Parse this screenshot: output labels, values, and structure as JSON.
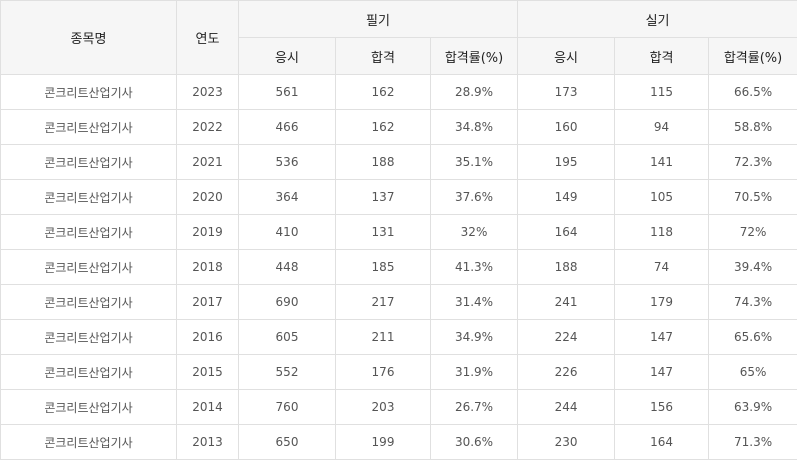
{
  "headers": {
    "name": "종목명",
    "year": "연도",
    "written": "필기",
    "practical": "실기",
    "applicants": "응시",
    "passed": "합격",
    "rate": "합격률(%)"
  },
  "rows": [
    {
      "name": "콘크리트산업기사",
      "year": "2023",
      "w_app": "561",
      "w_pass": "162",
      "w_rate": "28.9%",
      "p_app": "173",
      "p_pass": "115",
      "p_rate": "66.5%"
    },
    {
      "name": "콘크리트산업기사",
      "year": "2022",
      "w_app": "466",
      "w_pass": "162",
      "w_rate": "34.8%",
      "p_app": "160",
      "p_pass": "94",
      "p_rate": "58.8%"
    },
    {
      "name": "콘크리트산업기사",
      "year": "2021",
      "w_app": "536",
      "w_pass": "188",
      "w_rate": "35.1%",
      "p_app": "195",
      "p_pass": "141",
      "p_rate": "72.3%"
    },
    {
      "name": "콘크리트산업기사",
      "year": "2020",
      "w_app": "364",
      "w_pass": "137",
      "w_rate": "37.6%",
      "p_app": "149",
      "p_pass": "105",
      "p_rate": "70.5%"
    },
    {
      "name": "콘크리트산업기사",
      "year": "2019",
      "w_app": "410",
      "w_pass": "131",
      "w_rate": "32%",
      "p_app": "164",
      "p_pass": "118",
      "p_rate": "72%"
    },
    {
      "name": "콘크리트산업기사",
      "year": "2018",
      "w_app": "448",
      "w_pass": "185",
      "w_rate": "41.3%",
      "p_app": "188",
      "p_pass": "74",
      "p_rate": "39.4%"
    },
    {
      "name": "콘크리트산업기사",
      "year": "2017",
      "w_app": "690",
      "w_pass": "217",
      "w_rate": "31.4%",
      "p_app": "241",
      "p_pass": "179",
      "p_rate": "74.3%"
    },
    {
      "name": "콘크리트산업기사",
      "year": "2016",
      "w_app": "605",
      "w_pass": "211",
      "w_rate": "34.9%",
      "p_app": "224",
      "p_pass": "147",
      "p_rate": "65.6%"
    },
    {
      "name": "콘크리트산업기사",
      "year": "2015",
      "w_app": "552",
      "w_pass": "176",
      "w_rate": "31.9%",
      "p_app": "226",
      "p_pass": "147",
      "p_rate": "65%"
    },
    {
      "name": "콘크리트산업기사",
      "year": "2014",
      "w_app": "760",
      "w_pass": "203",
      "w_rate": "26.7%",
      "p_app": "244",
      "p_pass": "156",
      "p_rate": "63.9%"
    },
    {
      "name": "콘크리트산업기사",
      "year": "2013",
      "w_app": "650",
      "w_pass": "199",
      "w_rate": "30.6%",
      "p_app": "230",
      "p_pass": "164",
      "p_rate": "71.3%"
    }
  ]
}
